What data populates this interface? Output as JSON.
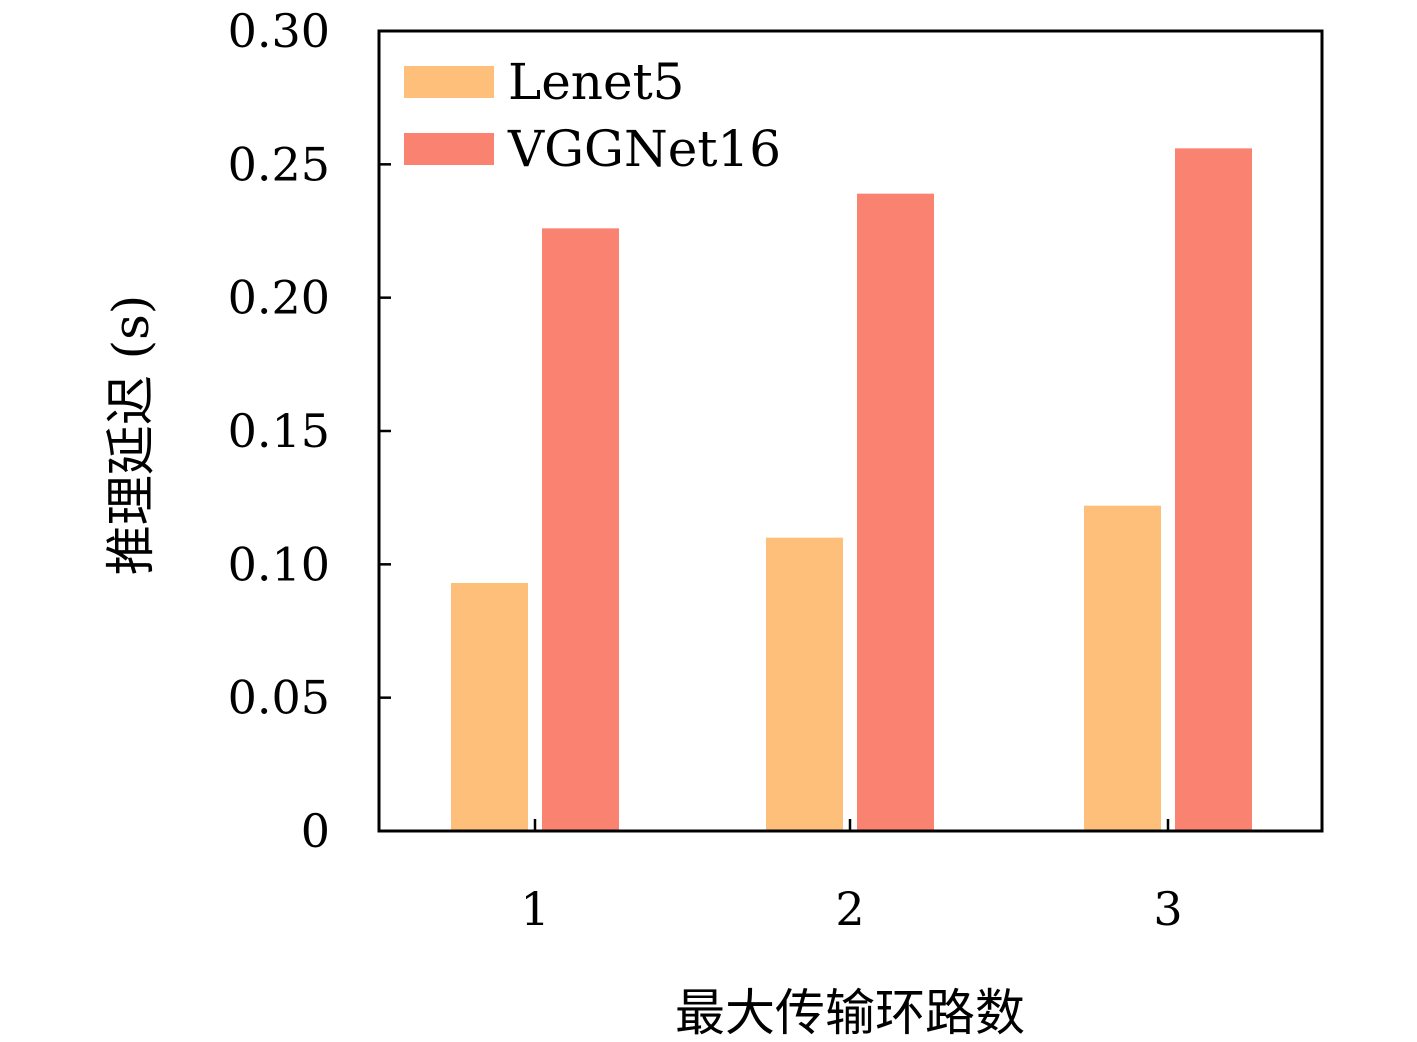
{
  "chart_data": {
    "type": "bar",
    "categories": [
      "1",
      "2",
      "3"
    ],
    "series": [
      {
        "name": "Lenet5",
        "values": [
          0.093,
          0.11,
          0.122
        ],
        "color": "#FDBF7A"
      },
      {
        "name": "VGGNet16",
        "values": [
          0.226,
          0.239,
          0.256
        ],
        "color": "#FA8270"
      }
    ],
    "title": "",
    "xlabel": "最大传输环路数",
    "ylabel": "推理延迟 (s)",
    "ylim": [
      0,
      0.3
    ],
    "yticks": [
      0,
      0.05,
      0.1,
      0.15,
      0.2,
      0.25,
      0.3
    ],
    "ytick_labels": [
      "0",
      "0.05",
      "0.10",
      "0.15",
      "0.20",
      "0.25",
      "0.30"
    ],
    "grid": false,
    "legend_position": "top-left"
  }
}
